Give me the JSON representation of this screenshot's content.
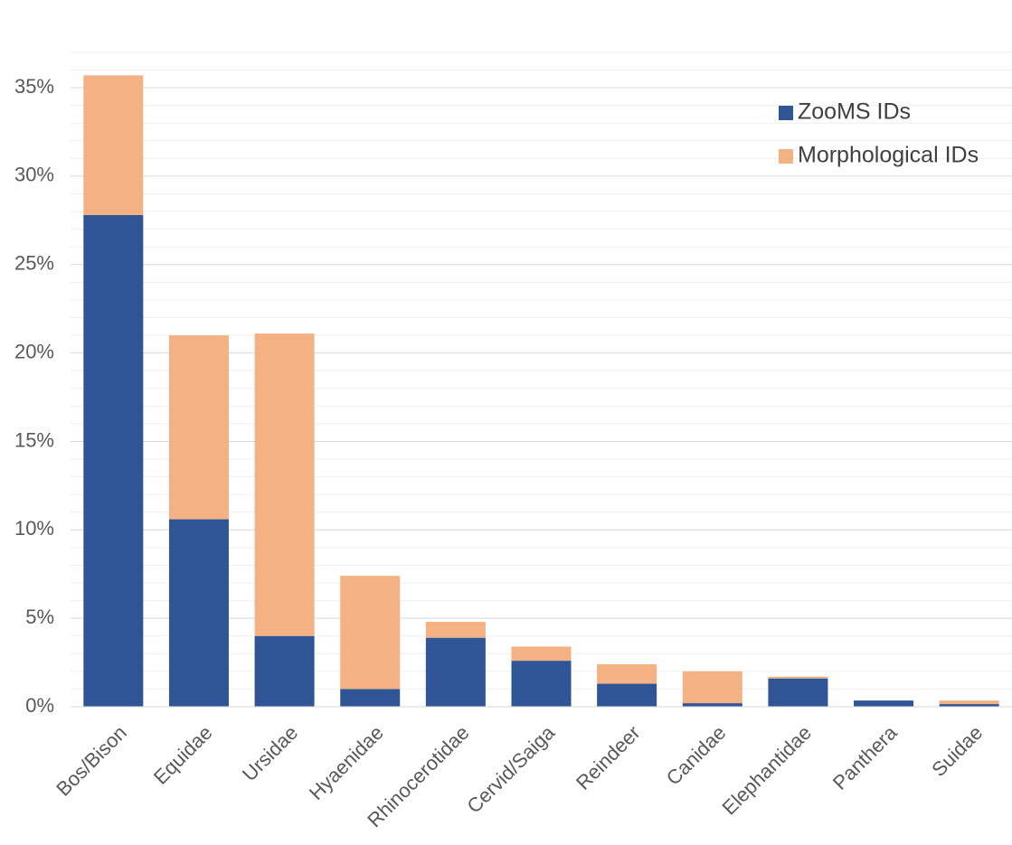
{
  "chart_data": {
    "type": "stacked_bar",
    "categories": [
      "Bos/Bison",
      "Equidae",
      "Ursidae",
      "Hyaenidae",
      "Rhinocerotidae",
      "Cervid/Saiga",
      "Reindeer",
      "Canidae",
      "Elephantidae",
      "Panthera",
      "Suidae"
    ],
    "series": [
      {
        "name": "ZooMS IDs",
        "color": "#2f5597",
        "values": [
          27.8,
          10.6,
          4.0,
          1.0,
          3.9,
          2.6,
          1.3,
          0.2,
          1.6,
          0.35,
          0.15
        ]
      },
      {
        "name": "Morphological IDs",
        "color": "#f4b183",
        "values": [
          7.9,
          10.4,
          17.1,
          6.4,
          0.9,
          0.8,
          1.1,
          1.8,
          0.1,
          0,
          0.2
        ]
      }
    ],
    "ylim": [
      0,
      38
    ],
    "yticks": [
      {
        "value": 0,
        "label": "0%"
      },
      {
        "value": 5,
        "label": "5%"
      },
      {
        "value": 10,
        "label": "10%"
      },
      {
        "value": 15,
        "label": "15%"
      },
      {
        "value": 20,
        "label": "20%"
      },
      {
        "value": 25,
        "label": "25%"
      },
      {
        "value": 30,
        "label": "30%"
      },
      {
        "value": 35,
        "label": "35%"
      }
    ],
    "minor_yticks": [
      1,
      2,
      3,
      4,
      6,
      7,
      8,
      9,
      11,
      12,
      13,
      14,
      16,
      17,
      18,
      19,
      21,
      22,
      23,
      24,
      26,
      27,
      28,
      29,
      31,
      32,
      33,
      34,
      36,
      37
    ],
    "grid": true,
    "legend": "upper right"
  }
}
